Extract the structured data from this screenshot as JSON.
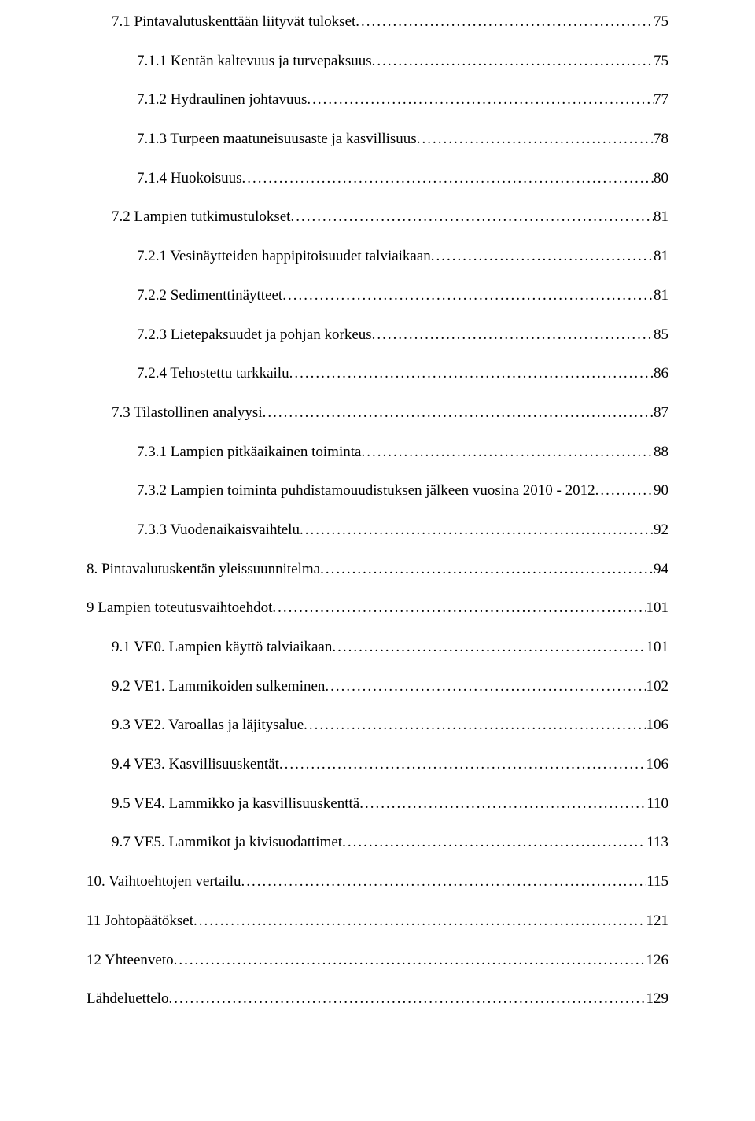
{
  "toc": {
    "font_family": "Times New Roman",
    "font_size_pt": 14,
    "text_color": "#000000",
    "background_color": "#ffffff",
    "leader_char": ".",
    "entries": [
      {
        "label": "7.1 Pintavalutuskenttään liityvät tulokset",
        "page": "75",
        "indent": 1
      },
      {
        "label": "7.1.1 Kentän kaltevuus ja turvepaksuus",
        "page": "75",
        "indent": 2
      },
      {
        "label": "7.1.2 Hydraulinen johtavuus",
        "page": "77",
        "indent": 2
      },
      {
        "label": "7.1.3 Turpeen maatuneisuusaste ja kasvillisuus",
        "page": "78",
        "indent": 2
      },
      {
        "label": "7.1.4 Huokoisuus",
        "page": "80",
        "indent": 2
      },
      {
        "label": "7.2 Lampien tutkimustulokset",
        "page": "81",
        "indent": 1
      },
      {
        "label": "7.2.1 Vesinäytteiden happipitoisuudet talviaikaan",
        "page": "81",
        "indent": 2
      },
      {
        "label": "7.2.2 Sedimenttinäytteet",
        "page": "81",
        "indent": 2
      },
      {
        "label": "7.2.3 Lietepaksuudet ja pohjan korkeus",
        "page": "85",
        "indent": 2
      },
      {
        "label": "7.2.4 Tehostettu tarkkailu",
        "page": "86",
        "indent": 2
      },
      {
        "label": "7.3 Tilastollinen analyysi",
        "page": "87",
        "indent": 1
      },
      {
        "label": "7.3.1 Lampien pitkäaikainen toiminta",
        "page": "88",
        "indent": 2
      },
      {
        "label": "7.3.2 Lampien toiminta puhdistamouudistuksen jälkeen vuosina 2010 - 2012",
        "page": "90",
        "indent": 2
      },
      {
        "label": "7.3.3 Vuodenaikaisvaihtelu",
        "page": "92",
        "indent": 2
      },
      {
        "label": "8. Pintavalutuskentän yleissuunnitelma",
        "page": "94",
        "indent": 0
      },
      {
        "label": "9 Lampien toteutusvaihtoehdot",
        "page": "101",
        "indent": 0
      },
      {
        "label": "9.1 VE0. Lampien käyttö talviaikaan",
        "page": "101",
        "indent": 1
      },
      {
        "label": "9.2 VE1. Lammikoiden sulkeminen",
        "page": "102",
        "indent": 1
      },
      {
        "label": "9.3 VE2. Varoallas ja läjitysalue",
        "page": "106",
        "indent": 1
      },
      {
        "label": "9.4 VE3. Kasvillisuuskentät",
        "page": "106",
        "indent": 1
      },
      {
        "label": "9.5 VE4. Lammikko ja kasvillisuuskenttä",
        "page": "110",
        "indent": 1
      },
      {
        "label": "9.7 VE5. Lammikot ja kivisuodattimet",
        "page": "113",
        "indent": 1
      },
      {
        "label": "10. Vaihtoehtojen vertailu",
        "page": "115",
        "indent": 0
      },
      {
        "label": "11 Johtopäätökset",
        "page": "121",
        "indent": 0
      },
      {
        "label": "12 Yhteenveto",
        "page": "126",
        "indent": 0
      },
      {
        "label": "Lähdeluettelo",
        "page": "129",
        "indent": 0
      }
    ]
  }
}
